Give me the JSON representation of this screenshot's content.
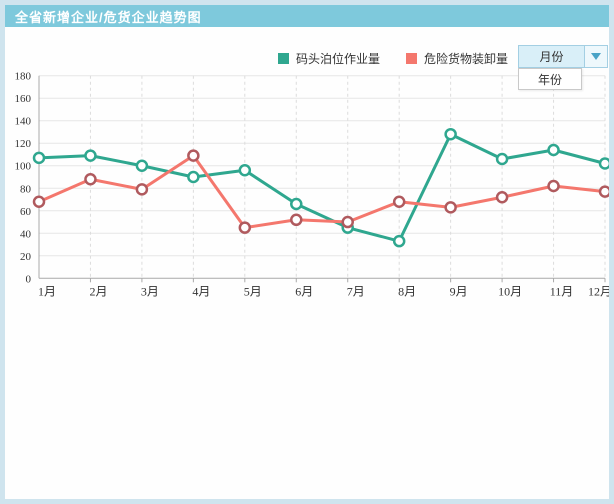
{
  "header": {
    "title": "全省新增企业/危货企业趋势图",
    "bar_color": "#7ec9dc"
  },
  "legend": {
    "items": [
      {
        "label": "码头泊位作业量",
        "color": "#2fa78f"
      },
      {
        "label": "危险货物装卸量",
        "color": "#f4776d"
      }
    ]
  },
  "period_selector": {
    "selected": "月份",
    "options": [
      "月份",
      "年份"
    ]
  },
  "chart_data": {
    "type": "line",
    "title": "全省新增企业/危货企业趋势图",
    "categories": [
      "1月",
      "2月",
      "3月",
      "4月",
      "5月",
      "6月",
      "7月",
      "8月",
      "9月",
      "10月",
      "11月",
      "12月"
    ],
    "series": [
      {
        "name": "码头泊位作业量",
        "color": "#2fa78f",
        "marker_stroke": "#2fa78f",
        "values": [
          107,
          109,
          100,
          90,
          96,
          66,
          45,
          33,
          128,
          106,
          114,
          102
        ]
      },
      {
        "name": "危险货物装卸量",
        "color": "#f4776d",
        "marker_stroke": "#b05a5e",
        "values": [
          68,
          88,
          79,
          109,
          45,
          52,
          50,
          68,
          63,
          72,
          82,
          77
        ]
      }
    ],
    "xlabel": "",
    "ylabel": "",
    "ylim": [
      0,
      180
    ],
    "ytick_step": 20,
    "grid": true,
    "legend_position": "top"
  }
}
